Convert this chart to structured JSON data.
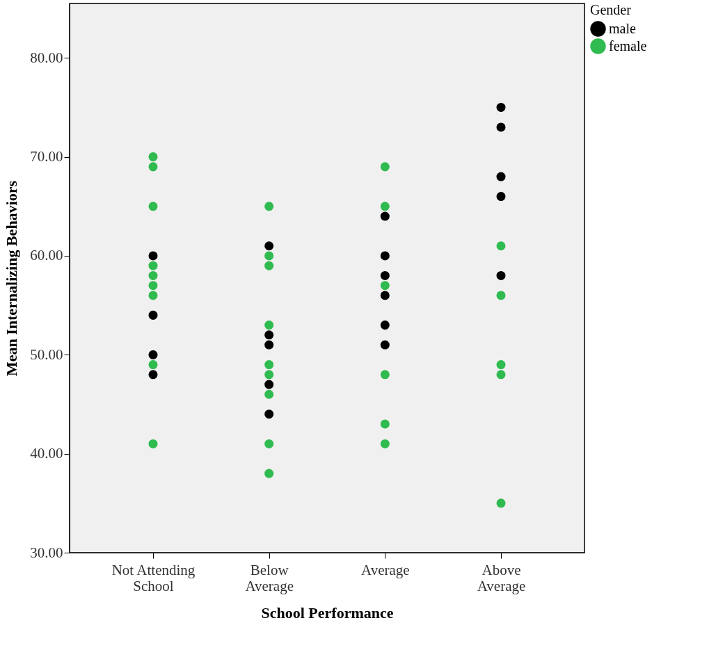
{
  "chart_data": {
    "type": "scatter",
    "xlabel": "School Performance",
    "ylabel": "Mean Internalizing Behaviors",
    "legend_title": "Gender",
    "categories": [
      "Not Attending School",
      "Below Average",
      "Average",
      "Above Average"
    ],
    "series": [
      {
        "name": "male",
        "color": "#000000",
        "x": [
          "Not Attending School",
          "Not Attending School",
          "Not Attending School",
          "Not Attending School",
          "Below Average",
          "Below Average",
          "Below Average",
          "Below Average",
          "Below Average",
          "Average",
          "Average",
          "Average",
          "Average",
          "Average",
          "Average",
          "Above Average",
          "Above Average",
          "Above Average",
          "Above Average",
          "Above Average"
        ],
        "values": [
          60,
          54,
          50,
          48,
          61,
          52,
          51,
          47,
          44,
          64,
          60,
          58,
          56,
          53,
          51,
          75,
          73,
          68,
          66,
          58
        ]
      },
      {
        "name": "female",
        "color": "#2fbb4f",
        "x": [
          "Not Attending School",
          "Not Attending School",
          "Not Attending School",
          "Not Attending School",
          "Not Attending School",
          "Not Attending School",
          "Not Attending School",
          "Not Attending School",
          "Not Attending School",
          "Below Average",
          "Below Average",
          "Below Average",
          "Below Average",
          "Below Average",
          "Below Average",
          "Below Average",
          "Below Average",
          "Below Average",
          "Average",
          "Average",
          "Average",
          "Average",
          "Average",
          "Average",
          "Above Average",
          "Above Average",
          "Above Average",
          "Above Average",
          "Above Average"
        ],
        "values": [
          70,
          69,
          65,
          59,
          58,
          57,
          56,
          49,
          41,
          65,
          60,
          59,
          53,
          49,
          48,
          46,
          41,
          38,
          69,
          65,
          57,
          48,
          43,
          41,
          61,
          56,
          49,
          48,
          35
        ]
      }
    ],
    "ylim": [
      30,
      85.5
    ],
    "yticks": [
      {
        "value": 30,
        "label": "30.00"
      },
      {
        "value": 40,
        "label": "40.00"
      },
      {
        "value": 50,
        "label": "50.00"
      },
      {
        "value": 60,
        "label": "60.00"
      },
      {
        "value": 70,
        "label": "70.00"
      },
      {
        "value": 80,
        "label": "80.00"
      }
    ],
    "grid": false,
    "legend": "top right",
    "marker": "circle"
  }
}
